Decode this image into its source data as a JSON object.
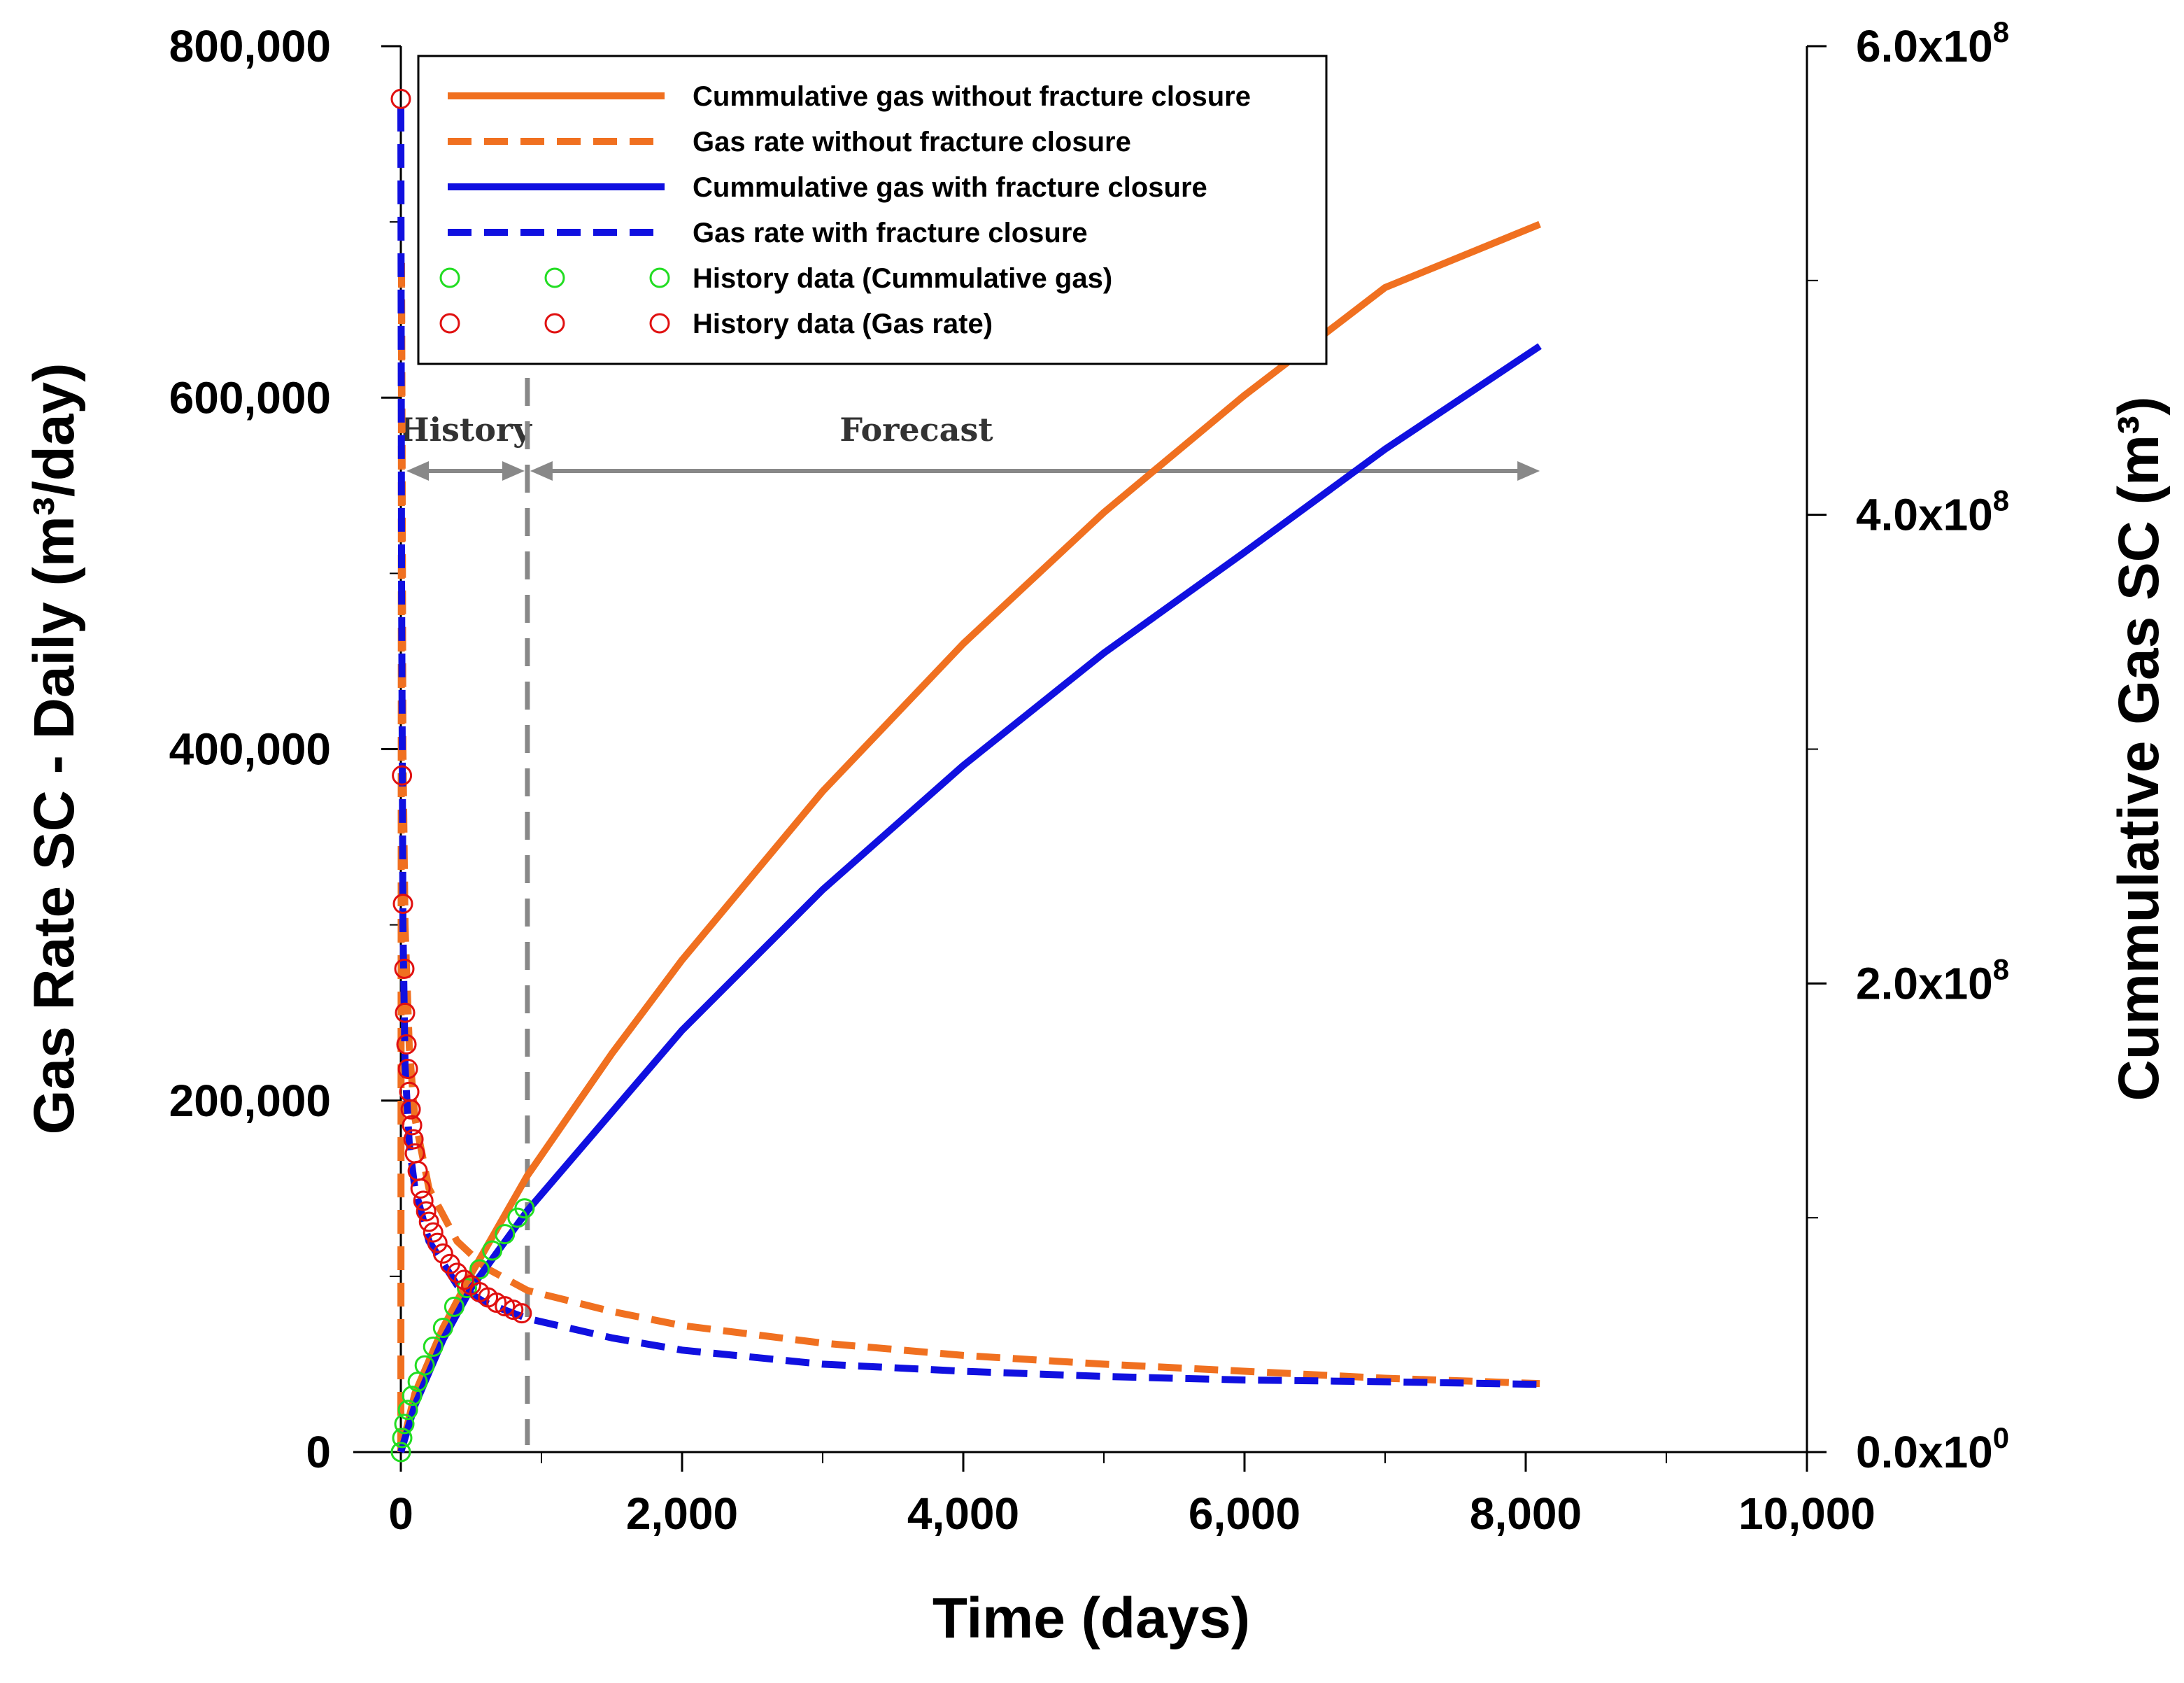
{
  "chart_data": {
    "type": "line",
    "xlabel": "Time (days)",
    "ylabel_left": "Gas Rate SC - Daily (m³/day)",
    "ylabel_right": "Cummulative Gas SC (m³)",
    "xlim": [
      0,
      10000
    ],
    "ylim_left": [
      0,
      800000
    ],
    "ylim_right": [
      0,
      600000000
    ],
    "x_ticks": [
      0,
      2000,
      4000,
      6000,
      8000,
      10000
    ],
    "x_tick_labels": [
      "0",
      "2,000",
      "4,000",
      "6,000",
      "8,000",
      "10,000"
    ],
    "y_left_ticks": [
      0,
      200000,
      400000,
      600000,
      800000
    ],
    "y_left_tick_labels": [
      "0",
      "200,000",
      "400,000",
      "600,000",
      "800,000"
    ],
    "y_right_ticks": [
      0,
      200000000,
      400000000,
      600000000
    ],
    "y_right_tick_labels": [
      {
        "base": "0.0x10",
        "exp": "0"
      },
      {
        "base": "2.0x10",
        "exp": "8"
      },
      {
        "base": "4.0x10",
        "exp": "8"
      },
      {
        "base": "6.0x10",
        "exp": "8"
      }
    ],
    "history_end_day": 900,
    "annotations": {
      "history": "History",
      "forecast": "Forecast"
    },
    "legend_position": "top",
    "series": [
      {
        "name": "Cummulative gas without fracture closure",
        "axis": "right",
        "color": "#F07020",
        "dash": false,
        "x": [
          0,
          100,
          300,
          500,
          900,
          1500,
          2000,
          3000,
          4000,
          5000,
          6000,
          7000,
          8100
        ],
        "y": [
          0,
          25000000,
          53000000,
          76000000,
          118000000,
          170000000,
          210000000,
          282000000,
          345000000,
          401000000,
          451000000,
          497000000,
          524000000
        ]
      },
      {
        "name": "Gas rate without fracture closure",
        "axis": "left",
        "color": "#F07020",
        "dash": true,
        "x": [
          0,
          5,
          15,
          30,
          60,
          100,
          200,
          400,
          600,
          900,
          1500,
          2000,
          3000,
          4000,
          5000,
          6000,
          7000,
          8100
        ],
        "y": [
          0,
          680000,
          400000,
          300000,
          230000,
          190000,
          150000,
          120000,
          105000,
          92000,
          80000,
          72000,
          62000,
          55000,
          50000,
          46000,
          42000,
          39000
        ]
      },
      {
        "name": "Cummulative gas with fracture closure",
        "axis": "right",
        "color": "#1010E0",
        "dash": false,
        "x": [
          0,
          100,
          300,
          500,
          900,
          1500,
          2000,
          3000,
          4000,
          5000,
          6000,
          7000,
          8100
        ],
        "y": [
          0,
          20000000,
          48000000,
          70000000,
          103000000,
          145000000,
          180000000,
          240000000,
          293000000,
          341000000,
          384000000,
          428000000,
          472000000
        ]
      },
      {
        "name": "Gas rate with fracture closure",
        "axis": "left",
        "color": "#1010E0",
        "dash": true,
        "x": [
          0,
          5,
          15,
          30,
          60,
          100,
          200,
          400,
          600,
          900,
          1500,
          2000,
          3000,
          4000,
          5000,
          6000,
          7000,
          8100
        ],
        "y": [
          765000,
          500000,
          300000,
          220000,
          175000,
          150000,
          120000,
          95000,
          85000,
          76000,
          65000,
          58000,
          50000,
          46000,
          43000,
          41000,
          40000,
          38500
        ]
      },
      {
        "name": "History data (Cummulative gas)",
        "axis": "right",
        "color": "#22DD22",
        "marker": "circle",
        "x": [
          0,
          10,
          25,
          50,
          80,
          120,
          170,
          230,
          300,
          380,
          470,
          560,
          650,
          740,
          830,
          880
        ],
        "y": [
          0,
          6000000,
          12000000,
          18000000,
          24000000,
          30000000,
          37000000,
          45000000,
          53000000,
          62000000,
          70000000,
          78000000,
          86000000,
          93000000,
          100000000,
          104000000
        ]
      },
      {
        "name": "History data (Gas rate)",
        "axis": "left",
        "color": "#E01010",
        "marker": "circle",
        "x": [
          0,
          8,
          15,
          25,
          30,
          40,
          50,
          60,
          70,
          80,
          90,
          100,
          120,
          140,
          160,
          180,
          200,
          230,
          260,
          300,
          350,
          400,
          450,
          500,
          560,
          620,
          680,
          740,
          800,
          860
        ],
        "y": [
          770000,
          385000,
          312000,
          275000,
          250000,
          232000,
          218000,
          205000,
          195000,
          186000,
          178000,
          170000,
          160000,
          150000,
          143000,
          137000,
          131000,
          125000,
          119000,
          113000,
          107000,
          102000,
          98000,
          95000,
          91000,
          88000,
          85000,
          83000,
          81000,
          79000
        ]
      }
    ]
  }
}
